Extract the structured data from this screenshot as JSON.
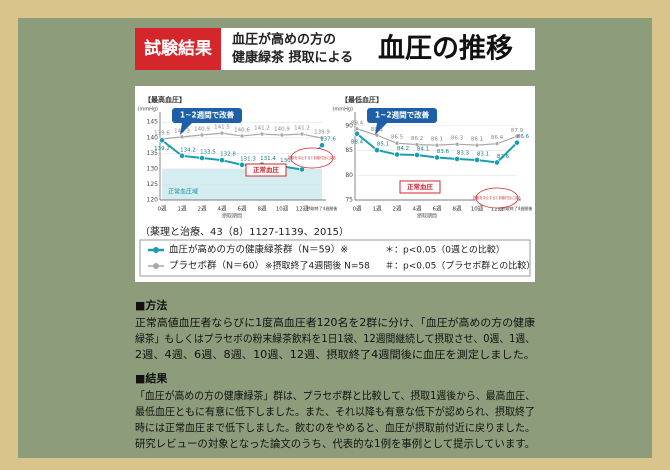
{
  "header": {
    "badge": "試験結果",
    "subtitle_lines": [
      "血圧が高めの方の",
      "健康緑茶 摂取による"
    ],
    "title": "血圧の推移"
  },
  "chart_data": [
    {
      "type": "line",
      "title": "【最高血圧】",
      "y_unit": "(mmHg)",
      "x_label": "摂取期間",
      "categories": [
        "0週",
        "1週",
        "2週",
        "4週",
        "6週",
        "8週",
        "10週",
        "12週",
        "摂取終了4週間後"
      ],
      "ylim": [
        120,
        147
      ],
      "yticks": [
        120,
        125,
        130,
        135,
        140,
        145
      ],
      "normal_range": [
        120,
        130
      ],
      "series": [
        {
          "name": "血圧が高めの方の健康緑茶群（N＝59）※",
          "color": "#1a9db0",
          "values": [
            139.2,
            134.2,
            133.5,
            132.8,
            131.3,
            131.4,
            130.8,
            129.8,
            137.6
          ]
        },
        {
          "name": "プラセボ群（N＝60）",
          "color": "#a8a8a8",
          "values": [
            139.6,
            140.3,
            140.9,
            141.5,
            140.6,
            141.2,
            140.9,
            141.2,
            139.9
          ]
        }
      ],
      "annotations": [
        "1~2週間で改善",
        "正常血圧",
        "摂取を中止すると前値付近に戻る",
        "正常血圧域"
      ]
    },
    {
      "type": "line",
      "title": "【最低血圧】",
      "y_unit": "(mmHg)",
      "x_label": "摂取期間",
      "categories": [
        "0週",
        "1週",
        "2週",
        "4週",
        "6週",
        "8週",
        "10週",
        "12週",
        "摂取終了4週間後"
      ],
      "ylim": [
        75,
        92
      ],
      "yticks": [
        75,
        80,
        85,
        90
      ],
      "series": [
        {
          "color": "#1a9db0",
          "values": [
            88.4,
            85.1,
            84.2,
            84.1,
            83.6,
            83.3,
            83.1,
            82.6,
            86.6
          ]
        },
        {
          "color": "#a8a8a8",
          "values": [
            89.4,
            88.1,
            86.5,
            86.2,
            86.1,
            86.3,
            86.1,
            86.4,
            87.9
          ]
        }
      ],
      "annotations": [
        "1~2週間で改善",
        "正常血圧",
        "摂取を中止すると前値付近に戻る"
      ]
    }
  ],
  "source": "（薬理と治療、43（8）1127-1139、2015）",
  "legend_notes": [
    "※摂取終了4週間後 N=58",
    "＊：p<0.05（0週との比較）",
    "＃：p<0.05（プラセボ群との比較）"
  ],
  "sections": [
    {
      "heading": "■方法",
      "lines": [
        "正常高値血圧者ならびに1度高血圧者120名を2群に分け、「血圧が高めの方の健康",
        "緑茶」もしくはプラセボの粉末緑茶飲料を1日1袋、12週間継続して摂取させ、0週、1週、",
        "2週、4週、6週、8週、10週、12週、摂取終了4週間後に血圧を測定しました。"
      ]
    },
    {
      "heading": "■結果",
      "lines": [
        "「血圧が高めの方の健康緑茶」群は、プラセボ群と比較して、摂取1週後から、最高血圧、",
        "最低血圧ともに有意に低下しました。また、それ以降も有意な低下が認められ、摂取終了",
        "時には正常血圧まで低下しました。飲むのをやめると、血圧が摂取前付近に戻りました。",
        "研究レビューの対象となった論文のうち、代表的な1例を事例として提示しています。"
      ]
    }
  ]
}
